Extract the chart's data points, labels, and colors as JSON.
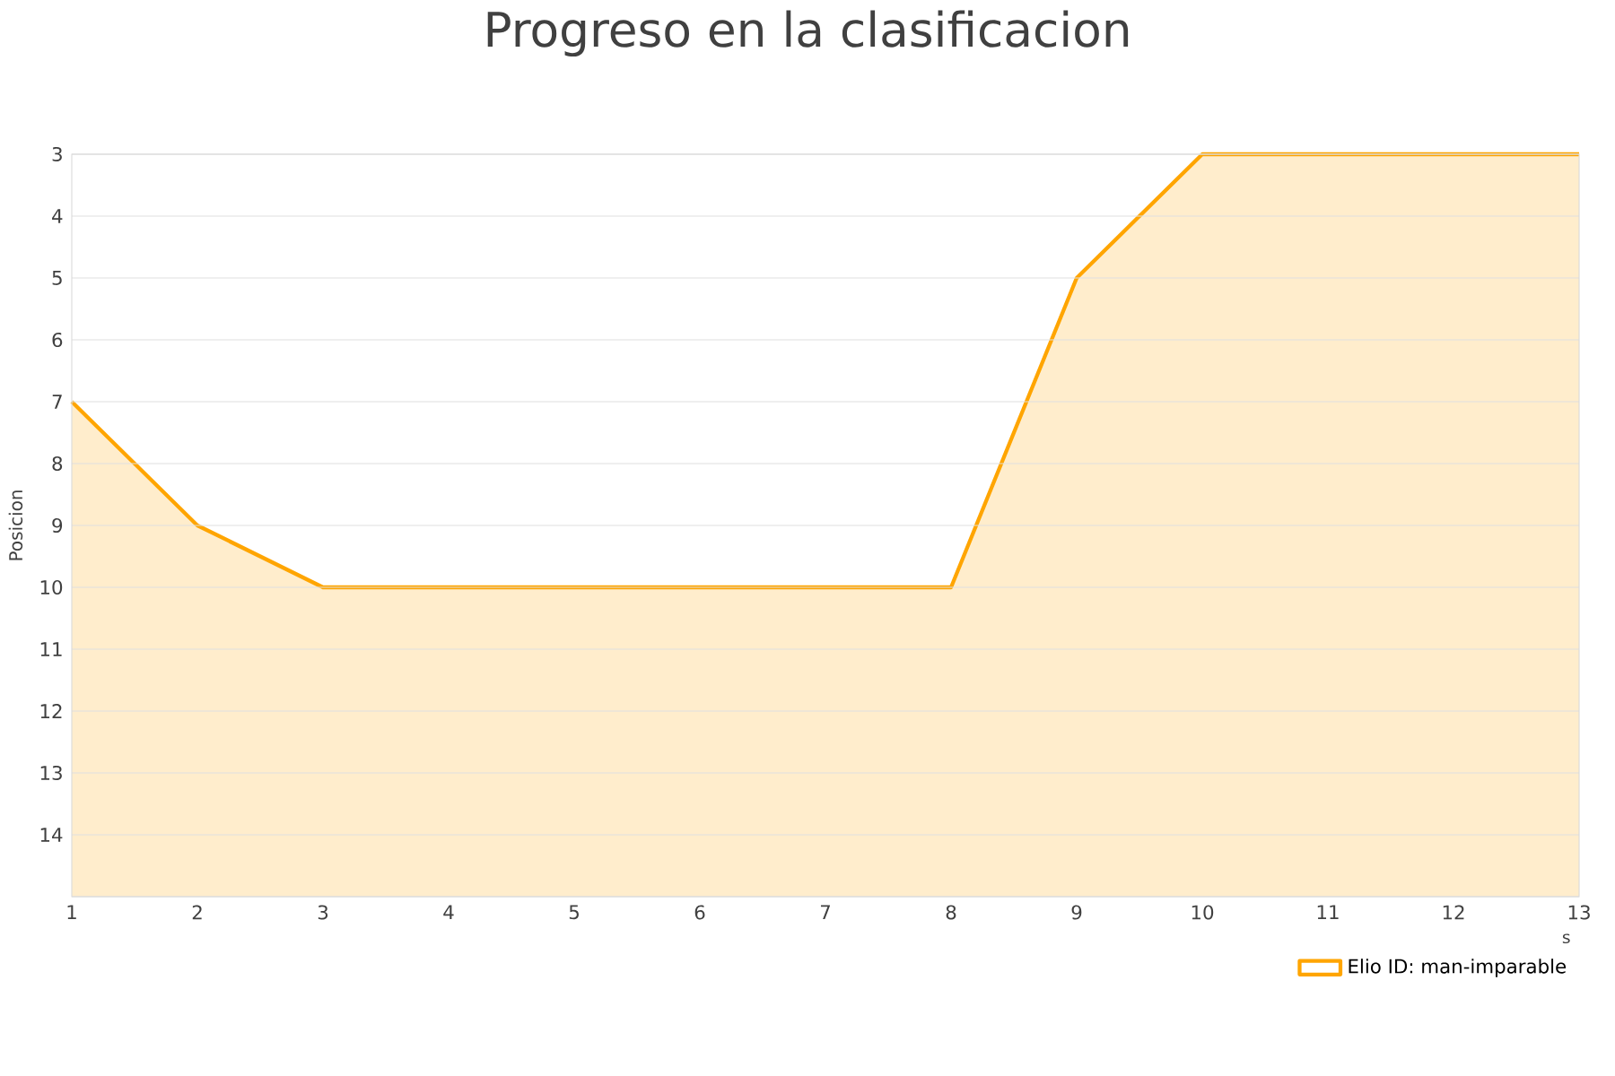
{
  "chart_data": {
    "type": "area",
    "title": "Progreso en la clasificacion",
    "xlabel": "s",
    "ylabel": "Posicion",
    "x": [
      1,
      2,
      3,
      4,
      5,
      6,
      7,
      8,
      9,
      10,
      11,
      12,
      13
    ],
    "series": [
      {
        "name": "Elio ID: man-imparable",
        "color": "#ffa500",
        "values": [
          7,
          9,
          10,
          10,
          10,
          10,
          10,
          10,
          5,
          3,
          3,
          3,
          3
        ]
      }
    ],
    "xlim": [
      1,
      13
    ],
    "xticks": [
      1,
      2,
      3,
      4,
      5,
      6,
      7,
      8,
      9,
      10,
      11,
      12,
      13
    ],
    "ylim": [
      15,
      3
    ],
    "yticks": [
      3,
      4,
      5,
      6,
      7,
      8,
      9,
      10,
      11,
      12,
      13,
      14,
      {
        "value": 15,
        "label": null
      }
    ],
    "grid": "y",
    "legend": "bottom right",
    "marker": "none",
    "line_style": "solid"
  }
}
